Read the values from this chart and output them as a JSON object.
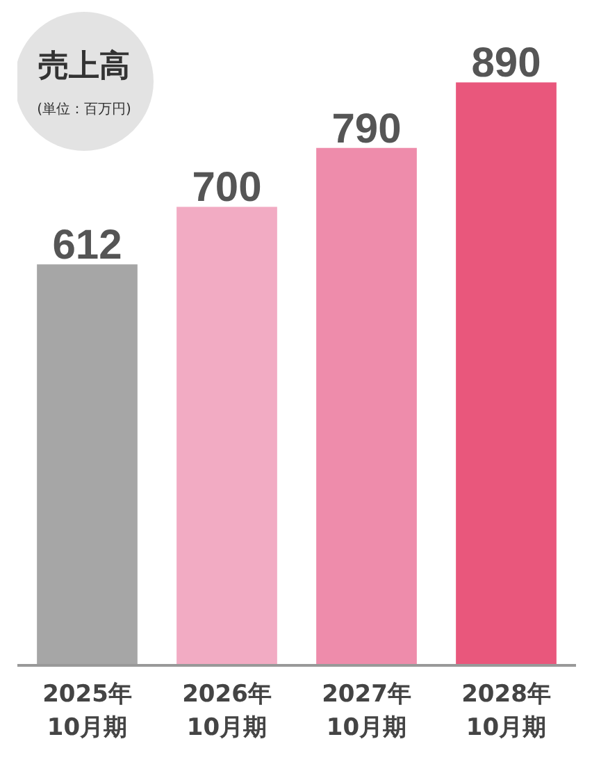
{
  "chart_data": {
    "type": "bar",
    "title": "売上高",
    "subtitle": "(単位：百万円)",
    "categories": [
      "2025年\n10月期",
      "2026年\n10月期",
      "2027年\n10月期",
      "2028年\n10月期"
    ],
    "values": [
      612,
      700,
      790,
      890
    ],
    "colors": [
      "#a6a6a6",
      "#f2abc3",
      "#ee8cab",
      "#e9577c"
    ],
    "data_labels": true
  }
}
